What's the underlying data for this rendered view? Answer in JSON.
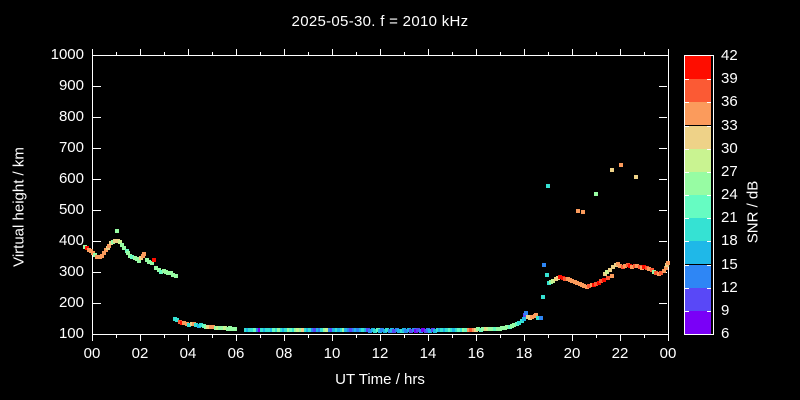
{
  "title": "2025-05-30. f = 2010 kHz",
  "axes": {
    "x_label": "UT Time / hrs",
    "y_label": "Virtual height / km",
    "x_range": [
      0,
      24
    ],
    "y_range": [
      100,
      1000
    ],
    "x_major_ticks": [
      {
        "t": 0,
        "label": "00"
      },
      {
        "t": 2,
        "label": "02"
      },
      {
        "t": 4,
        "label": "04"
      },
      {
        "t": 6,
        "label": "06"
      },
      {
        "t": 8,
        "label": "08"
      },
      {
        "t": 10,
        "label": "10"
      },
      {
        "t": 12,
        "label": "12"
      },
      {
        "t": 14,
        "label": "14"
      },
      {
        "t": 16,
        "label": "16"
      },
      {
        "t": 18,
        "label": "18"
      },
      {
        "t": 20,
        "label": "20"
      },
      {
        "t": 22,
        "label": "22"
      },
      {
        "t": 24,
        "label": "00"
      }
    ],
    "x_minor_step_hours": 1,
    "y_major_ticks": [
      {
        "v": 100,
        "label": "100"
      },
      {
        "v": 200,
        "label": "200"
      },
      {
        "v": 300,
        "label": "300"
      },
      {
        "v": 400,
        "label": "400"
      },
      {
        "v": 500,
        "label": "500"
      },
      {
        "v": 600,
        "label": "600"
      },
      {
        "v": 700,
        "label": "700"
      },
      {
        "v": 800,
        "label": "800"
      },
      {
        "v": 900,
        "label": "900"
      },
      {
        "v": 1000,
        "label": "1000"
      }
    ]
  },
  "colorbar": {
    "label": "SNR / dB",
    "min": 6,
    "max": 42,
    "step": 3,
    "tick_labels": [
      "6",
      "9",
      "12",
      "15",
      "18",
      "21",
      "24",
      "27",
      "30",
      "33",
      "36",
      "39",
      "42"
    ],
    "segment_colors_low_to_high": [
      "#7a00f7",
      "#5948f7",
      "#2e86f5",
      "#1fb8e8",
      "#35e2d3",
      "#66fcc2",
      "#97fca3",
      "#c9f391",
      "#eed288",
      "#fb9b5c",
      "#fb5a34",
      "#fe0d00"
    ]
  },
  "colors": {
    "background": "#000000",
    "text": "#ffffff",
    "axis": "#ffffff"
  },
  "chart_data": {
    "type": "scatter",
    "title": "2025-05-30. f = 2010 kHz",
    "xlabel": "UT Time / hrs",
    "ylabel": "Virtual height / km",
    "color_label": "SNR / dB",
    "xlim": [
      0,
      24
    ],
    "ylim": [
      100,
      1000
    ],
    "color_lim": [
      6,
      42
    ],
    "point_format": "[ut_hours, virtual_height_km, snr_db]",
    "points": [
      [
        -0.3,
        382,
        25
      ],
      [
        -0.2,
        377,
        40
      ],
      [
        -0.12,
        372,
        35
      ],
      [
        -0.05,
        368,
        35
      ],
      [
        0.05,
        362,
        35
      ],
      [
        0.12,
        356,
        25
      ],
      [
        0.22,
        350,
        35
      ],
      [
        0.32,
        347,
        35
      ],
      [
        0.42,
        352,
        35
      ],
      [
        0.5,
        360,
        35
      ],
      [
        0.58,
        370,
        35
      ],
      [
        0.65,
        377,
        31
      ],
      [
        0.72,
        385,
        35
      ],
      [
        0.8,
        392,
        31
      ],
      [
        0.88,
        396,
        25
      ],
      [
        0.95,
        399,
        31
      ],
      [
        1.05,
        432,
        25
      ],
      [
        1.08,
        400,
        31
      ],
      [
        1.15,
        396,
        28
      ],
      [
        1.25,
        388,
        25
      ],
      [
        1.35,
        379,
        25
      ],
      [
        1.45,
        369,
        22
      ],
      [
        1.52,
        361,
        25
      ],
      [
        1.6,
        353,
        25
      ],
      [
        1.68,
        348,
        22
      ],
      [
        1.78,
        344,
        25
      ],
      [
        1.88,
        341,
        25
      ],
      [
        1.95,
        337,
        25
      ],
      [
        2.05,
        344,
        31
      ],
      [
        2.12,
        352,
        35
      ],
      [
        2.18,
        359,
        35
      ],
      [
        2.28,
        338,
        25
      ],
      [
        2.38,
        333,
        25
      ],
      [
        2.48,
        330,
        25
      ],
      [
        2.58,
        340,
        40
      ],
      [
        2.68,
        312,
        25
      ],
      [
        2.78,
        306,
        25
      ],
      [
        2.88,
        301,
        22
      ],
      [
        2.98,
        303,
        25
      ],
      [
        3.08,
        301,
        25
      ],
      [
        3.18,
        298,
        25
      ],
      [
        3.28,
        296,
        25
      ],
      [
        3.38,
        290,
        25
      ],
      [
        3.48,
        286,
        25
      ],
      [
        3.45,
        149,
        20
      ],
      [
        3.55,
        144,
        20
      ],
      [
        3.65,
        140,
        38
      ],
      [
        3.75,
        137,
        40
      ],
      [
        3.85,
        134,
        35
      ],
      [
        3.95,
        132,
        35
      ],
      [
        4.05,
        130,
        20
      ],
      [
        4.15,
        133,
        31
      ],
      [
        4.25,
        131,
        35
      ],
      [
        4.35,
        128,
        20
      ],
      [
        4.45,
        126,
        17
      ],
      [
        4.55,
        128,
        20
      ],
      [
        4.65,
        125,
        22
      ],
      [
        4.75,
        123,
        25
      ],
      [
        4.85,
        122,
        31
      ],
      [
        4.95,
        121,
        35
      ],
      [
        5.05,
        122,
        35
      ],
      [
        5.15,
        120,
        25
      ],
      [
        5.25,
        119,
        28
      ],
      [
        5.35,
        120,
        25
      ],
      [
        5.45,
        118,
        25
      ],
      [
        5.55,
        118,
        28
      ],
      [
        5.65,
        117,
        25
      ],
      [
        5.75,
        118,
        25
      ],
      [
        5.85,
        117,
        25
      ],
      [
        5.95,
        116,
        25
      ],
      [
        6.4,
        114,
        20
      ],
      [
        6.5,
        113,
        17
      ],
      [
        6.6,
        114,
        20
      ],
      [
        6.7,
        113,
        20
      ],
      [
        6.8,
        112,
        22
      ],
      [
        6.9,
        113,
        14
      ],
      [
        7.0,
        112,
        7
      ],
      [
        7.1,
        113,
        20
      ],
      [
        7.2,
        112,
        17
      ],
      [
        7.3,
        113,
        20
      ],
      [
        7.4,
        112,
        20
      ],
      [
        7.5,
        113,
        17
      ],
      [
        7.6,
        112,
        22
      ],
      [
        7.7,
        113,
        20
      ],
      [
        7.8,
        112,
        25
      ],
      [
        7.9,
        113,
        20
      ],
      [
        8.0,
        112,
        17
      ],
      [
        8.1,
        113,
        20
      ],
      [
        8.2,
        112,
        25
      ],
      [
        8.3,
        113,
        22
      ],
      [
        8.4,
        112,
        20
      ],
      [
        8.5,
        113,
        25
      ],
      [
        8.6,
        112,
        28
      ],
      [
        8.7,
        113,
        25
      ],
      [
        8.8,
        112,
        31
      ],
      [
        8.9,
        113,
        20
      ],
      [
        9.0,
        112,
        17
      ],
      [
        9.1,
        112,
        20
      ],
      [
        9.2,
        113,
        14
      ],
      [
        9.3,
        112,
        11
      ],
      [
        9.4,
        112,
        17
      ],
      [
        9.5,
        113,
        14
      ],
      [
        9.6,
        112,
        20
      ],
      [
        9.7,
        112,
        25
      ],
      [
        9.8,
        113,
        28
      ],
      [
        9.9,
        112,
        14
      ],
      [
        10.0,
        112,
        11
      ],
      [
        10.1,
        112,
        17
      ],
      [
        10.2,
        113,
        20
      ],
      [
        10.3,
        112,
        17
      ],
      [
        10.4,
        112,
        20
      ],
      [
        10.5,
        112,
        25
      ],
      [
        10.6,
        113,
        17
      ],
      [
        10.7,
        112,
        14
      ],
      [
        10.8,
        112,
        11
      ],
      [
        10.9,
        112,
        14
      ],
      [
        11.0,
        112,
        17
      ],
      [
        11.1,
        112,
        14
      ],
      [
        11.2,
        112,
        17
      ],
      [
        11.3,
        112,
        20
      ],
      [
        11.4,
        112,
        17
      ],
      [
        11.5,
        112,
        11
      ],
      [
        11.6,
        111,
        14
      ],
      [
        11.7,
        112,
        17
      ],
      [
        11.8,
        111,
        20
      ],
      [
        11.9,
        112,
        22
      ],
      [
        12.0,
        111,
        17
      ],
      [
        12.1,
        112,
        14
      ],
      [
        12.2,
        111,
        17
      ],
      [
        12.3,
        112,
        20
      ],
      [
        12.4,
        111,
        14
      ],
      [
        12.5,
        112,
        17
      ],
      [
        12.6,
        111,
        11
      ],
      [
        12.7,
        112,
        14
      ],
      [
        12.8,
        111,
        17
      ],
      [
        12.9,
        111,
        20
      ],
      [
        13.0,
        112,
        17
      ],
      [
        13.1,
        111,
        14
      ],
      [
        13.2,
        112,
        17
      ],
      [
        13.3,
        111,
        11
      ],
      [
        13.4,
        112,
        14
      ],
      [
        13.5,
        111,
        8
      ],
      [
        13.6,
        112,
        11
      ],
      [
        13.7,
        111,
        14
      ],
      [
        13.8,
        112,
        8
      ],
      [
        13.9,
        111,
        11
      ],
      [
        14.0,
        112,
        14
      ],
      [
        14.1,
        111,
        17
      ],
      [
        14.2,
        112,
        11
      ],
      [
        14.3,
        111,
        17
      ],
      [
        14.4,
        112,
        20
      ],
      [
        14.5,
        112,
        17
      ],
      [
        14.6,
        112,
        20
      ],
      [
        14.7,
        113,
        17
      ],
      [
        14.8,
        112,
        20
      ],
      [
        14.9,
        113,
        22
      ],
      [
        15.0,
        112,
        20
      ],
      [
        15.1,
        113,
        17
      ],
      [
        15.2,
        112,
        20
      ],
      [
        15.3,
        113,
        22
      ],
      [
        15.4,
        113,
        20
      ],
      [
        15.5,
        114,
        25
      ],
      [
        15.6,
        113,
        22
      ],
      [
        15.7,
        114,
        35
      ],
      [
        15.8,
        113,
        38
      ],
      [
        15.9,
        114,
        35
      ],
      [
        16.0,
        114,
        31
      ],
      [
        16.1,
        115,
        25
      ],
      [
        16.2,
        114,
        22
      ],
      [
        16.3,
        115,
        25
      ],
      [
        16.4,
        115,
        31
      ],
      [
        16.5,
        116,
        28
      ],
      [
        16.6,
        115,
        25
      ],
      [
        16.7,
        116,
        25
      ],
      [
        16.8,
        116,
        22
      ],
      [
        16.9,
        117,
        25
      ],
      [
        17.0,
        117,
        25
      ],
      [
        17.1,
        118,
        25
      ],
      [
        17.2,
        119,
        25
      ],
      [
        17.3,
        121,
        25
      ],
      [
        17.4,
        123,
        22
      ],
      [
        17.5,
        125,
        25
      ],
      [
        17.6,
        128,
        25
      ],
      [
        17.7,
        132,
        22
      ],
      [
        17.8,
        137,
        20
      ],
      [
        17.9,
        143,
        20
      ],
      [
        18.0,
        150,
        17
      ],
      [
        18.05,
        161,
        11
      ],
      [
        18.1,
        168,
        14
      ],
      [
        18.15,
        155,
        31
      ],
      [
        18.25,
        152,
        31
      ],
      [
        18.35,
        156,
        35
      ],
      [
        18.45,
        159,
        33
      ],
      [
        18.5,
        162,
        35
      ],
      [
        18.6,
        151,
        20
      ],
      [
        18.7,
        153,
        12
      ],
      [
        18.78,
        219,
        19
      ],
      [
        18.85,
        322,
        13
      ],
      [
        18.95,
        291,
        19
      ],
      [
        19.0,
        578,
        19
      ],
      [
        19.05,
        264,
        20
      ],
      [
        19.12,
        268,
        25
      ],
      [
        19.22,
        272,
        28
      ],
      [
        19.32,
        276,
        31
      ],
      [
        19.42,
        280,
        31
      ],
      [
        19.52,
        283,
        40
      ],
      [
        19.62,
        281,
        40
      ],
      [
        19.72,
        279,
        38
      ],
      [
        19.82,
        277,
        35
      ],
      [
        19.92,
        274,
        35
      ],
      [
        20.02,
        271,
        35
      ],
      [
        20.12,
        268,
        35
      ],
      [
        20.22,
        264,
        35
      ],
      [
        20.32,
        260,
        35
      ],
      [
        20.42,
        258,
        35
      ],
      [
        20.52,
        255,
        35
      ],
      [
        20.62,
        253,
        35
      ],
      [
        20.72,
        255,
        38
      ],
      [
        20.82,
        257,
        35
      ],
      [
        20.92,
        259,
        40
      ],
      [
        21.02,
        262,
        38
      ],
      [
        21.12,
        266,
        40
      ],
      [
        21.22,
        270,
        38
      ],
      [
        21.32,
        275,
        40
      ],
      [
        21.38,
        295,
        31
      ],
      [
        21.45,
        300,
        28
      ],
      [
        21.52,
        281,
        38
      ],
      [
        21.58,
        306,
        31
      ],
      [
        21.65,
        288,
        35
      ],
      [
        21.72,
        316,
        31
      ],
      [
        21.82,
        322,
        31
      ],
      [
        21.92,
        326,
        33
      ],
      [
        22.02,
        318,
        35
      ],
      [
        22.12,
        315,
        38
      ],
      [
        22.22,
        319,
        35
      ],
      [
        22.32,
        322,
        38
      ],
      [
        22.42,
        318,
        40
      ],
      [
        22.52,
        315,
        35
      ],
      [
        22.62,
        318,
        38
      ],
      [
        22.72,
        320,
        35
      ],
      [
        22.82,
        316,
        38
      ],
      [
        22.92,
        313,
        35
      ],
      [
        23.02,
        317,
        40
      ],
      [
        23.12,
        313,
        38
      ],
      [
        23.22,
        309,
        35
      ],
      [
        23.32,
        305,
        38
      ],
      [
        23.42,
        300,
        25
      ],
      [
        23.52,
        297,
        38
      ],
      [
        23.62,
        294,
        35
      ],
      [
        23.72,
        297,
        38
      ],
      [
        23.82,
        303,
        35
      ],
      [
        23.9,
        312,
        35
      ],
      [
        23.97,
        322,
        31
      ],
      [
        24.02,
        330,
        35
      ],
      [
        20.25,
        497,
        35
      ],
      [
        20.45,
        493,
        35
      ],
      [
        21.0,
        551,
        25
      ],
      [
        21.65,
        629,
        31
      ],
      [
        22.05,
        646,
        35
      ],
      [
        22.65,
        608,
        31
      ]
    ]
  }
}
